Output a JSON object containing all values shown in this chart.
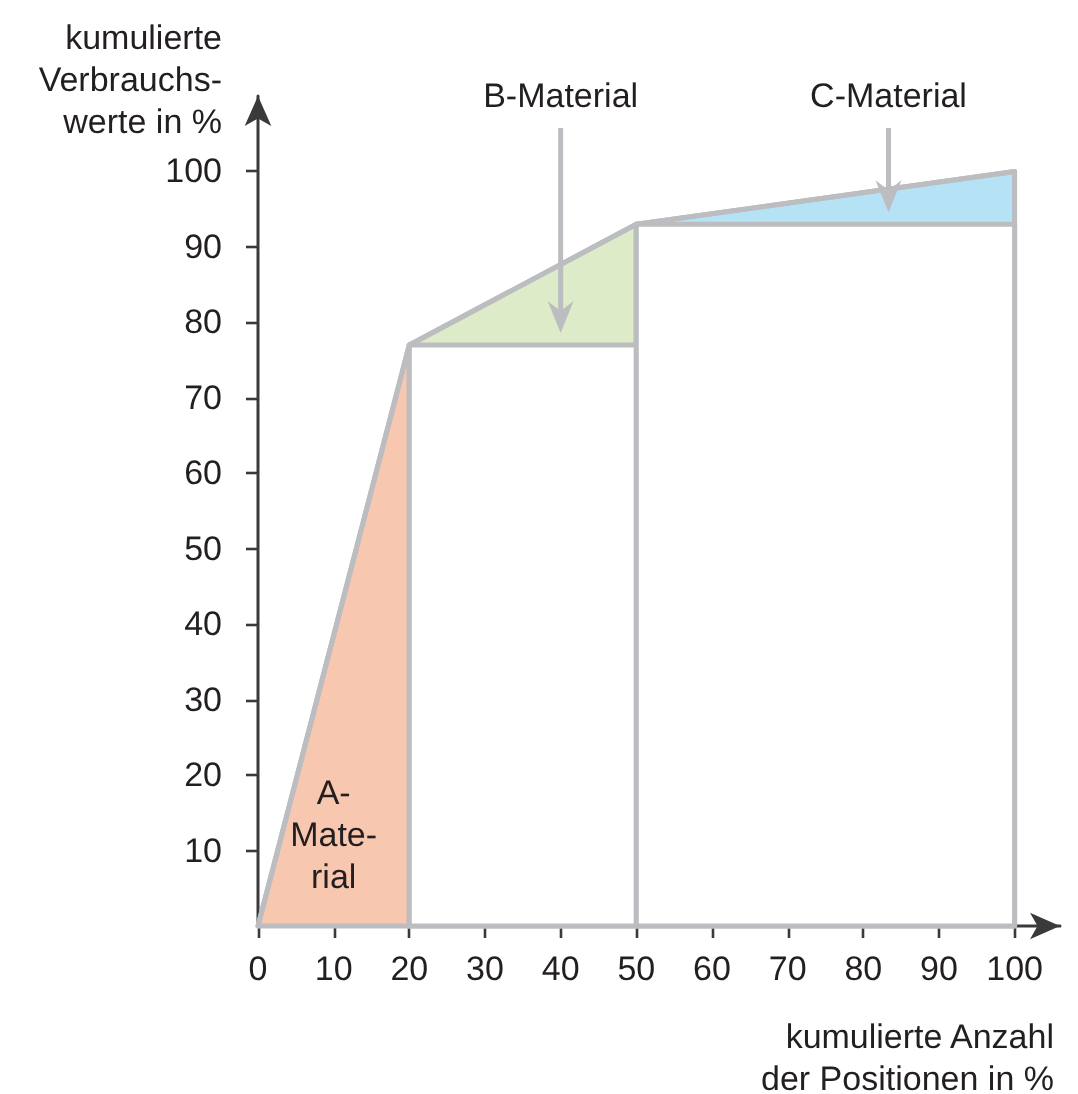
{
  "chart_data": {
    "type": "area",
    "ylabel": "kumulierte\nVerbrauchs-\nwerte in %",
    "xlabel": "kumulierte Anzahl\nder Positionen in %",
    "xlim": [
      0,
      106
    ],
    "xticks": [
      0,
      10,
      20,
      30,
      40,
      50,
      60,
      70,
      80,
      90,
      100
    ],
    "ylim": [
      0,
      110
    ],
    "yticks": [
      10,
      20,
      30,
      40,
      50,
      60,
      70,
      80,
      90,
      100
    ],
    "series": [
      {
        "name": "A-\nMate-\nrial",
        "x": [
          0,
          20
        ],
        "values": [
          0,
          77
        ],
        "color": "#f8c7b0"
      },
      {
        "name": "B-Material",
        "x": [
          20,
          50
        ],
        "values": [
          77,
          93
        ],
        "color": "#deebc9"
      },
      {
        "name": "C-Material",
        "x": [
          50,
          100
        ],
        "values": [
          93,
          100
        ],
        "color": "#b6e2f6"
      },
      {
        "type": "histogram",
        "bins": [
          20,
          50,
          100
        ],
        "values": [
          77,
          93
        ],
        "color": "#ffffff"
      },
      {
        "type": "line",
        "x": [
          0,
          20,
          50,
          100
        ],
        "values": [
          0,
          77,
          93,
          100
        ],
        "color": "#bcbdc0"
      }
    ]
  }
}
